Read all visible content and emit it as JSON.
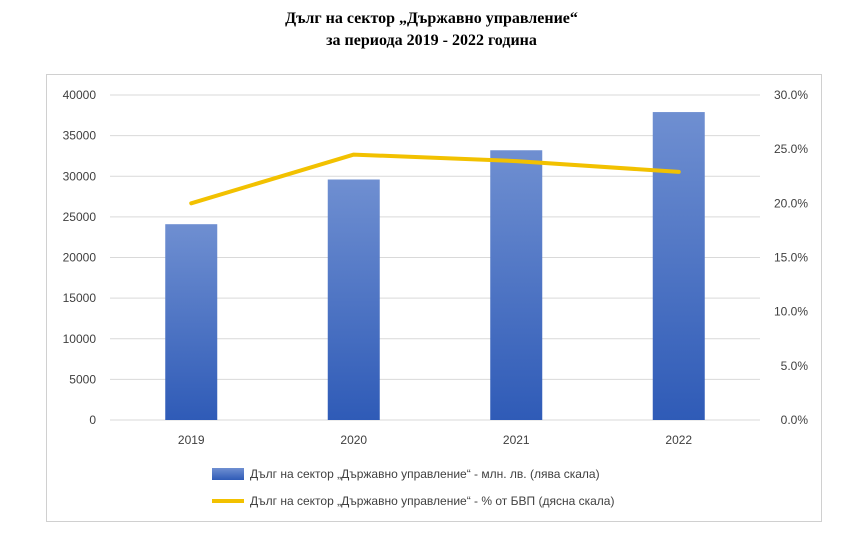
{
  "chart_data": {
    "type": "bar",
    "title": "Дълг на сектор „Държавно управление“",
    "subtitle": "за периода 2019 - 2022 година",
    "categories": [
      "2019",
      "2020",
      "2021",
      "2022"
    ],
    "series": [
      {
        "name": "Дълг на сектор „Държавно управление“ - млн. лв. (лява скала)",
        "type": "bar",
        "axis": "left",
        "color": "#4472C4",
        "values": [
          24100,
          29600,
          33200,
          37900
        ]
      },
      {
        "name": "Дълг на сектор „Държавно управление“ - % от БВП (дясна скала)",
        "type": "line",
        "axis": "right",
        "color": "#F2C100",
        "values": [
          20.0,
          24.5,
          23.9,
          22.9
        ]
      }
    ],
    "left_axis": {
      "ylim": [
        0,
        40000
      ],
      "ticks": [
        "0",
        "5000",
        "10000",
        "15000",
        "20000",
        "25000",
        "30000",
        "35000",
        "40000"
      ]
    },
    "right_axis": {
      "ylim": [
        0,
        30
      ],
      "ticks": [
        "0.0%",
        "5.0%",
        "10.0%",
        "15.0%",
        "20.0%",
        "25.0%",
        "30.0%"
      ]
    },
    "grid": true,
    "legend_position": "bottom"
  }
}
